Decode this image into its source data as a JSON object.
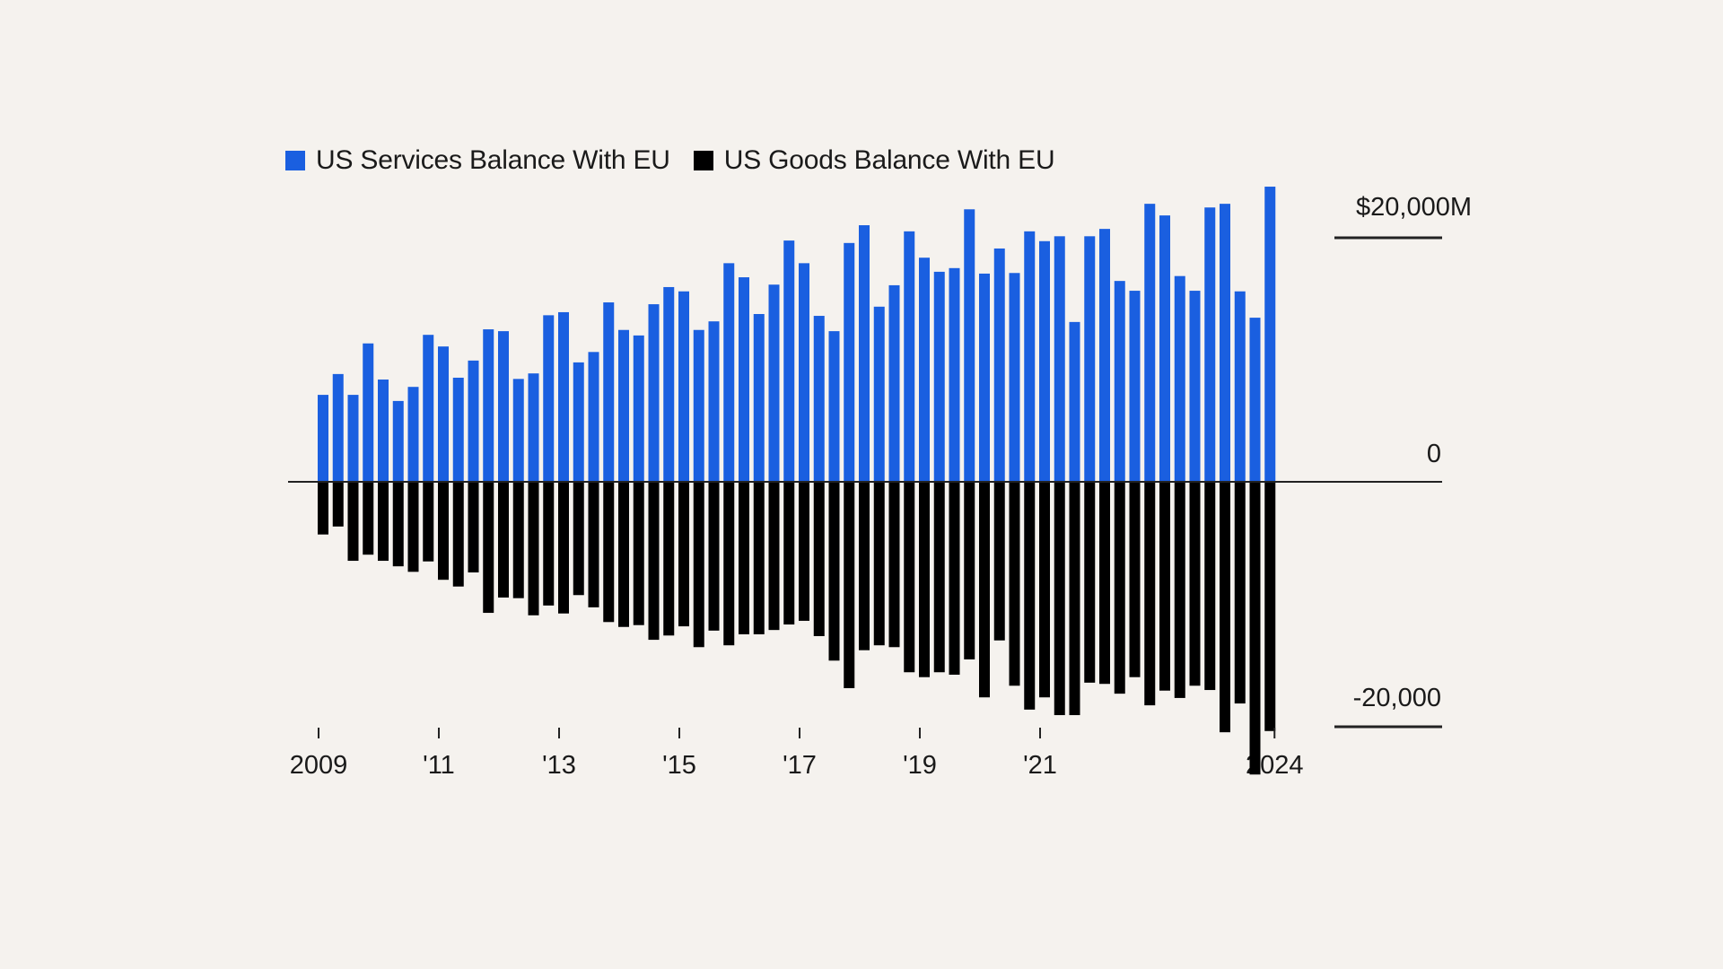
{
  "chart_data": {
    "type": "bar",
    "stacked_diverging": true,
    "title": "",
    "xlabel": "",
    "ylabel": "",
    "frequency": "quarterly",
    "period_start": "2009 Q1",
    "period_end": "2024 Q4",
    "ylim": [
      -24000,
      25000
    ],
    "grid": false,
    "legend_position": "top-left",
    "y_ticks": [
      {
        "value": 20000,
        "label": "$20,000M"
      },
      {
        "value": 0,
        "label": "0"
      },
      {
        "value": -20000,
        "label": "-20,000"
      }
    ],
    "x_ticks": [
      {
        "year": 2009,
        "label": "2009"
      },
      {
        "year": 2011,
        "label": "'11"
      },
      {
        "year": 2013,
        "label": "'13"
      },
      {
        "year": 2015,
        "label": "'15"
      },
      {
        "year": 2017,
        "label": "'17"
      },
      {
        "year": 2019,
        "label": "'19"
      },
      {
        "year": 2021,
        "label": "'21"
      },
      {
        "year": 2024,
        "label": "2024"
      }
    ],
    "series": [
      {
        "name": "US Services Balance With EU",
        "color": "#1a5fe0",
        "values": [
          7100,
          8800,
          7100,
          11300,
          8350,
          6600,
          7750,
          12000,
          11050,
          8500,
          9900,
          12450,
          12300,
          8400,
          8850,
          13600,
          13850,
          9750,
          10600,
          14650,
          12400,
          11950,
          14500,
          15900,
          15550,
          12400,
          13100,
          17850,
          16700,
          13700,
          16100,
          19700,
          17850,
          13550,
          12300,
          19500,
          20950,
          14300,
          16050,
          20450,
          18300,
          17150,
          17450,
          22250,
          17000,
          19050,
          17050,
          20450,
          19650,
          20050,
          13050,
          20050,
          20650,
          16400,
          15600,
          22700,
          21750,
          16800,
          15600,
          22400,
          22700,
          15550,
          13400,
          24100
        ]
      },
      {
        "name": "US Goods Balance With EU",
        "color": "#000000",
        "values": [
          -4300,
          -3650,
          -6450,
          -5950,
          -6450,
          -6900,
          -7350,
          -6500,
          -8000,
          -8550,
          -7400,
          -10700,
          -9450,
          -9500,
          -10900,
          -10100,
          -10750,
          -9250,
          -10250,
          -11450,
          -11850,
          -11700,
          -12900,
          -12550,
          -11800,
          -13500,
          -12150,
          -13350,
          -12450,
          -12450,
          -12100,
          -11650,
          -11350,
          -12600,
          -14600,
          -16850,
          -13750,
          -13350,
          -13500,
          -15550,
          -15950,
          -15550,
          -15750,
          -14500,
          -17600,
          -12950,
          -16650,
          -18600,
          -17600,
          -19050,
          -19050,
          -16400,
          -16500,
          -17300,
          -15950,
          -18250,
          -17050,
          -17650,
          -16650,
          -17000,
          -20450,
          -18100,
          -23900,
          -20350
        ]
      }
    ]
  }
}
